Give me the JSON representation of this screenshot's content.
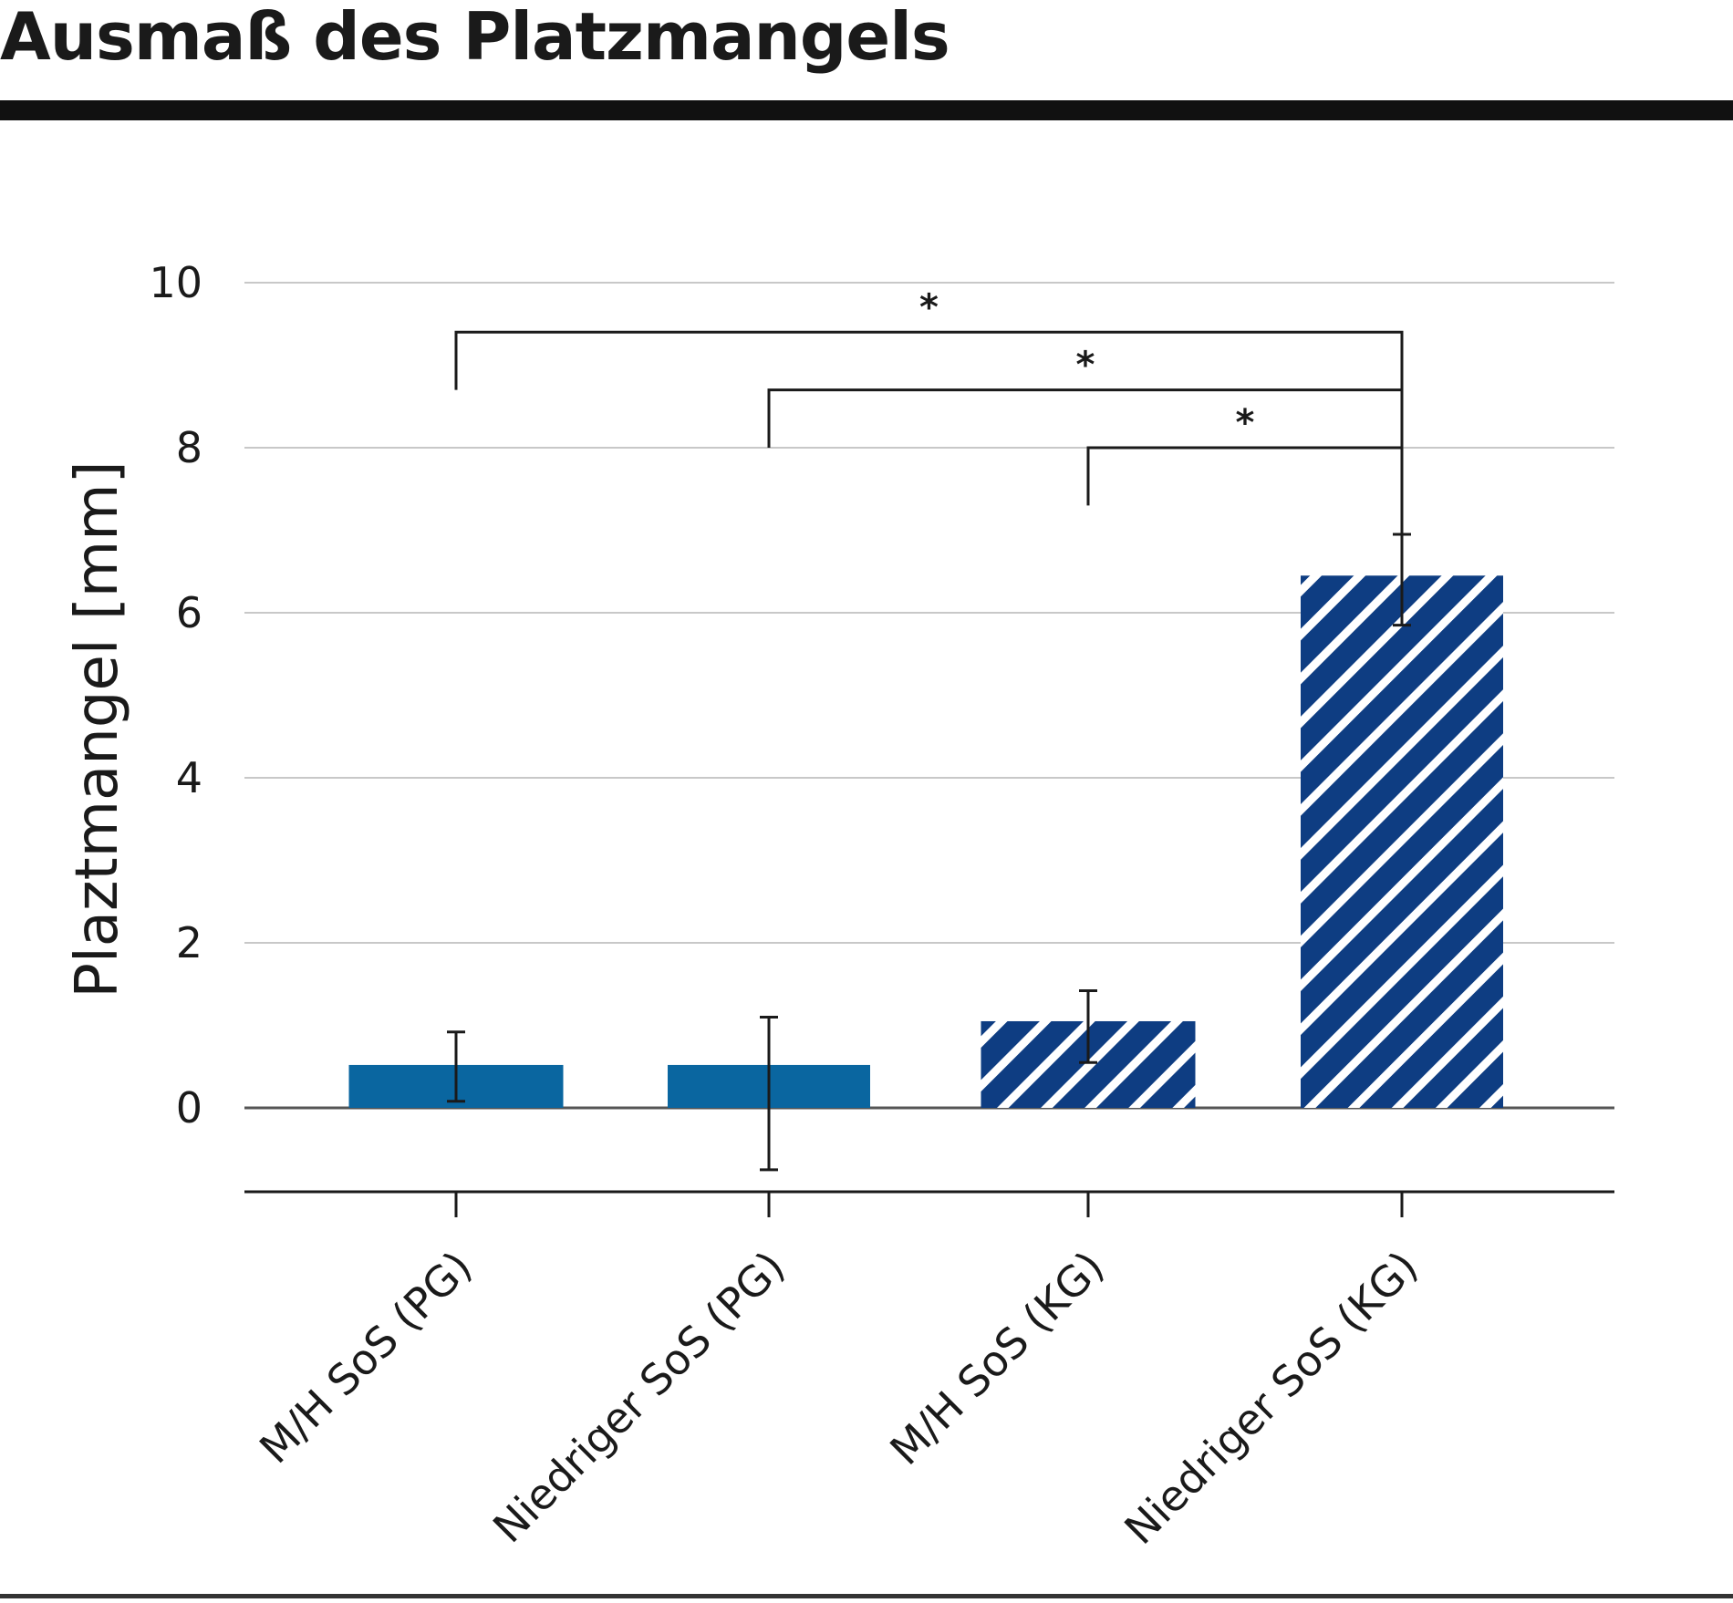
{
  "page": {
    "title": "Ausmaß des Platzmangels"
  },
  "chart_data": {
    "type": "bar",
    "title": "Ausmaß des Platzmangels",
    "ylabel": "Plaztmangel [mm]",
    "xlabel": "",
    "ylim": [
      -1,
      10
    ],
    "yticks": [
      0,
      2,
      4,
      6,
      8,
      10
    ],
    "grid": true,
    "categories": [
      "M/H SoS (PG)",
      "Niedriger SoS (PG)",
      "M/H SoS (KG)",
      "Niedriger SoS (KG)"
    ],
    "values": [
      0.52,
      0.52,
      1.05,
      6.45
    ],
    "error_low": [
      0.08,
      -0.75,
      0.55,
      5.85
    ],
    "error_high": [
      0.92,
      1.1,
      1.42,
      6.95
    ],
    "fills": [
      "solid",
      "solid",
      "hatched",
      "hatched"
    ],
    "colors": {
      "solid": "#0a66a0",
      "hatched": "#0e3d82",
      "grid": "#c8c8c8",
      "axis": "#555555",
      "ink": "#1a1a1a"
    },
    "significance": [
      {
        "from": 0,
        "to": 3,
        "level": 9.4,
        "drop_from": 8.7,
        "drop_to": 6.2,
        "label": "*"
      },
      {
        "from": 1,
        "to": 3,
        "level": 8.7,
        "drop_from": 8.0,
        "drop_to": 6.2,
        "label": "*"
      },
      {
        "from": 2,
        "to": 3,
        "level": 8.0,
        "drop_from": 7.3,
        "drop_to": 6.2,
        "label": "*"
      }
    ]
  }
}
